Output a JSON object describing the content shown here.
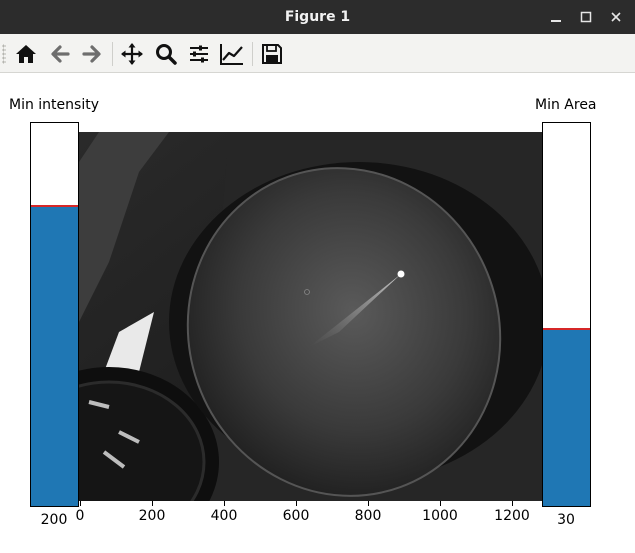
{
  "window": {
    "title": "Figure 1",
    "controls": [
      "minimize",
      "maximize",
      "close"
    ]
  },
  "toolbar": {
    "buttons": [
      {
        "name": "home",
        "icon": "home-icon"
      },
      {
        "name": "back",
        "icon": "back-arrow-icon"
      },
      {
        "name": "forward",
        "icon": "forward-arrow-icon"
      },
      {
        "name": "pan",
        "icon": "move-icon"
      },
      {
        "name": "zoom",
        "icon": "magnifier-icon"
      },
      {
        "name": "configure-subplots",
        "icon": "sliders-icon"
      },
      {
        "name": "edit-axes",
        "icon": "line-chart-icon"
      },
      {
        "name": "save",
        "icon": "floppy-disk-icon"
      }
    ]
  },
  "sliders": {
    "left": {
      "label": "Min intensity",
      "value_text": "200",
      "value": 200,
      "max": 255,
      "fill_color": "#1f77b4",
      "marker_color": "#d62728"
    },
    "right": {
      "label": "Min Area",
      "value_text": "30",
      "value": 30,
      "max": 65,
      "fill_color": "#1f77b4",
      "marker_color": "#d62728"
    }
  },
  "image_axis": {
    "x_ticks": [
      "0",
      "200",
      "400",
      "600",
      "800",
      "1000",
      "1200"
    ]
  }
}
